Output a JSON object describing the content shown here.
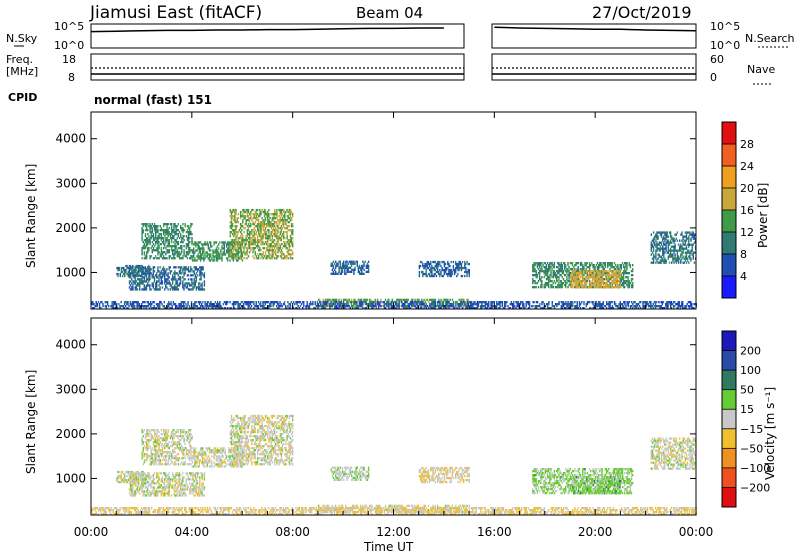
{
  "header": {
    "station": "Jiamusi East (fitACF)",
    "beam": "Beam 04",
    "date": "27/Oct/2019"
  },
  "noise_panel": {
    "left_label": "N.Sky",
    "right_label": "N.Search",
    "left_ticks": [
      "10^5",
      "10^0"
    ],
    "right_ticks": [
      "10^5",
      "10^0"
    ]
  },
  "freq_panel": {
    "left_label_1": "Freq.",
    "left_label_2": "[MHz]",
    "left_ticks": [
      "18",
      "8"
    ],
    "right_label": "Nave",
    "right_ticks": [
      "60",
      "0"
    ]
  },
  "cpid": {
    "label": "CPID",
    "value": "normal (fast) 151"
  },
  "power_panel": {
    "ylabel": "Slant Range [km]",
    "yticks": [
      "4000",
      "3000",
      "2000",
      "1000"
    ],
    "colorbar_label": "Power [dB]",
    "colorbar_ticks": [
      "28",
      "24",
      "20",
      "16",
      "12",
      "8",
      "4"
    ],
    "colors": [
      "#1a1aff",
      "#1f4fb5",
      "#2f7a73",
      "#3f9a4a",
      "#c8a83a",
      "#f0a020",
      "#f06020",
      "#e01010"
    ]
  },
  "velocity_panel": {
    "ylabel": "Slant Range [km]",
    "yticks": [
      "4000",
      "3000",
      "2000",
      "1000"
    ],
    "colorbar_label": "Velocity [m s⁻¹]",
    "colorbar_ticks": [
      "200",
      "100",
      "50",
      "15",
      "−15",
      "−50",
      "−100",
      "−200"
    ],
    "colors": [
      "#1a1ab8",
      "#2a4aa8",
      "#2e7a60",
      "#66cc33",
      "#c8c8c8",
      "#f0c030",
      "#f09020",
      "#f05020",
      "#e01010"
    ]
  },
  "xaxis": {
    "label": "Time UT",
    "ticks": [
      "00:00",
      "04:00",
      "08:00",
      "12:00",
      "16:00",
      "20:00",
      "00:00"
    ]
  },
  "chart_data": [
    {
      "type": "line",
      "title": "N.Sky / N.Search",
      "x_range_hours": [
        0,
        24
      ],
      "data_gap_hours": [
        15,
        16
      ],
      "ylim_log10": [
        0,
        5
      ],
      "x": [
        0,
        1,
        2,
        3,
        4,
        5,
        6,
        7,
        8,
        9,
        10,
        11,
        12,
        13,
        14,
        15,
        16,
        17,
        18,
        19,
        20,
        21,
        22,
        23,
        24
      ],
      "series": [
        {
          "values_log10": [
            3.6,
            3.7,
            3.8,
            3.9,
            3.9,
            4.0,
            4.0,
            4.1,
            4.1,
            4.2,
            4.3,
            4.4,
            4.4,
            4.5,
            4.5,
            null,
            4.7,
            4.5,
            4.4,
            4.3,
            4.2,
            4.2,
            4.0,
            3.9,
            3.8
          ]
        }
      ]
    },
    {
      "type": "line",
      "title": "Freq / Nave",
      "x_range_hours": [
        0,
        24
      ],
      "data_gap_hours": [
        15,
        16
      ],
      "freq_mhz": 10,
      "nave": 26,
      "freq_ylim": [
        8,
        18
      ],
      "nave_ylim": [
        0,
        60
      ]
    },
    {
      "type": "heatmap",
      "title": "Power [dB]",
      "x_range_hours": [
        0,
        24
      ],
      "ylim_km": [
        180,
        4600
      ],
      "value_range": [
        0,
        30
      ],
      "echo_regions": [
        {
          "t_start": 1.0,
          "t_end": 2.3,
          "r_min": 900,
          "r_max": 1150,
          "value": 9
        },
        {
          "t_start": 2.0,
          "t_end": 4.0,
          "r_min": 1300,
          "r_max": 2100,
          "value": 11
        },
        {
          "t_start": 4.0,
          "t_end": 6.0,
          "r_min": 1250,
          "r_max": 1700,
          "value": 12
        },
        {
          "t_start": 5.5,
          "t_end": 8.0,
          "r_min": 1300,
          "r_max": 2400,
          "value": 15
        },
        {
          "t_start": 1.5,
          "t_end": 4.5,
          "r_min": 600,
          "r_max": 1100,
          "value": 8
        },
        {
          "t_start": 9.5,
          "t_end": 11.0,
          "r_min": 950,
          "r_max": 1250,
          "value": 7
        },
        {
          "t_start": 13.0,
          "t_end": 15.0,
          "r_min": 900,
          "r_max": 1250,
          "value": 7
        },
        {
          "t_start": 9.0,
          "t_end": 15.0,
          "r_min": 230,
          "r_max": 380,
          "value": 14
        },
        {
          "t_start": 17.5,
          "t_end": 21.5,
          "r_min": 650,
          "r_max": 1200,
          "value": 11
        },
        {
          "t_start": 19.0,
          "t_end": 21.0,
          "r_min": 650,
          "r_max": 1050,
          "value": 18
        },
        {
          "t_start": 22.2,
          "t_end": 24.0,
          "r_min": 1200,
          "r_max": 1900,
          "value": 9
        },
        {
          "t_start": 0.0,
          "t_end": 24.0,
          "r_min": 180,
          "r_max": 320,
          "value": 6
        }
      ]
    },
    {
      "type": "heatmap",
      "title": "Velocity [m s⁻¹]",
      "x_range_hours": [
        0,
        24
      ],
      "ylim_km": [
        180,
        4600
      ],
      "value_range": [
        -250,
        250
      ],
      "echo_regions": [
        {
          "t_start": 1.0,
          "t_end": 2.3,
          "r_min": 900,
          "r_max": 1150,
          "value": 0
        },
        {
          "t_start": 2.0,
          "t_end": 4.0,
          "r_min": 1300,
          "r_max": 2100,
          "value": 0
        },
        {
          "t_start": 4.0,
          "t_end": 6.0,
          "r_min": 1250,
          "r_max": 1700,
          "value": 0
        },
        {
          "t_start": 5.5,
          "t_end": 8.0,
          "r_min": 1300,
          "r_max": 2400,
          "value": -5
        },
        {
          "t_start": 1.5,
          "t_end": 4.5,
          "r_min": 600,
          "r_max": 1100,
          "value": 0
        },
        {
          "t_start": 9.5,
          "t_end": 11.0,
          "r_min": 950,
          "r_max": 1250,
          "value": 20
        },
        {
          "t_start": 13.0,
          "t_end": 15.0,
          "r_min": 900,
          "r_max": 1250,
          "value": -20
        },
        {
          "t_start": 9.0,
          "t_end": 15.0,
          "r_min": 230,
          "r_max": 380,
          "value": -10
        },
        {
          "t_start": 17.5,
          "t_end": 21.5,
          "r_min": 650,
          "r_max": 1200,
          "value": 40
        },
        {
          "t_start": 19.0,
          "t_end": 21.0,
          "r_min": 650,
          "r_max": 1050,
          "value": 45
        },
        {
          "t_start": 22.2,
          "t_end": 24.0,
          "r_min": 1200,
          "r_max": 1900,
          "value": 0
        },
        {
          "t_start": 0.0,
          "t_end": 24.0,
          "r_min": 180,
          "r_max": 320,
          "value": -30
        }
      ]
    }
  ]
}
